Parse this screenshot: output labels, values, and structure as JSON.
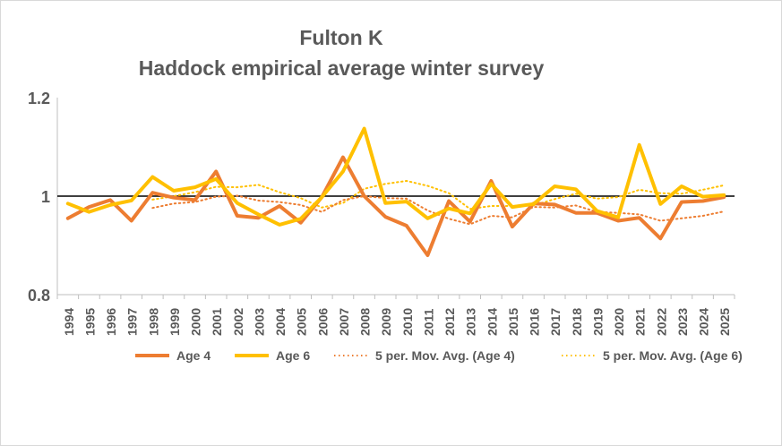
{
  "chart_data": {
    "type": "line",
    "title": "Fulton K",
    "subtitle": "Haddock empirical average winter survey",
    "x": [
      "1994",
      "1995",
      "1996",
      "1997",
      "1998",
      "1999",
      "2000",
      "2001",
      "2002",
      "2003",
      "2004",
      "2005",
      "2006",
      "2007",
      "2008",
      "2009",
      "2010",
      "2011",
      "2012",
      "2013",
      "2014",
      "2015",
      "2016",
      "2017",
      "2018",
      "2019",
      "2020",
      "2021",
      "2022",
      "2023",
      "2024",
      "2025"
    ],
    "ylim": [
      0.8,
      1.2
    ],
    "yticks": [
      "0.8",
      "1",
      "1.2"
    ],
    "reference_line": 1,
    "grid": false,
    "legend_position": "bottom",
    "series": [
      {
        "name": "Age 4",
        "style": "solid",
        "color": "#ED7D31",
        "values": [
          0.955,
          0.978,
          0.992,
          0.95,
          1.007,
          0.997,
          0.992,
          1.05,
          0.96,
          0.956,
          0.98,
          0.946,
          0.998,
          1.079,
          1.0,
          0.958,
          0.94,
          0.88,
          0.99,
          0.948,
          1.031,
          0.938,
          0.985,
          0.983,
          0.966,
          0.966,
          0.95,
          0.956,
          0.914,
          0.988,
          0.99,
          0.998
        ]
      },
      {
        "name": "Age 6",
        "style": "solid",
        "color": "#FFC000",
        "values": [
          0.985,
          0.968,
          0.982,
          0.991,
          1.039,
          1.011,
          1.018,
          1.035,
          0.986,
          0.963,
          0.942,
          0.954,
          0.998,
          1.05,
          1.137,
          0.986,
          0.989,
          0.955,
          0.975,
          0.965,
          1.025,
          0.978,
          0.984,
          1.02,
          1.014,
          0.97,
          0.957,
          1.104,
          0.984,
          1.02,
          0.999,
          1.002
        ]
      },
      {
        "name": "5 per. Mov. Avg. (Age 4)",
        "style": "dotted",
        "color": "#ED7D31",
        "values": [
          null,
          null,
          null,
          null,
          0.976,
          0.985,
          0.988,
          0.999,
          1.001,
          0.991,
          0.988,
          0.982,
          0.968,
          0.992,
          1.0,
          0.996,
          0.995,
          0.971,
          0.954,
          0.943,
          0.96,
          0.957,
          0.978,
          0.977,
          0.981,
          0.968,
          0.966,
          0.963,
          0.95,
          0.955,
          0.96,
          0.969
        ]
      },
      {
        "name": "5 per. Mov. Avg. (Age 6)",
        "style": "dotted",
        "color": "#FFC000",
        "values": [
          null,
          null,
          null,
          null,
          0.993,
          1.0,
          1.008,
          1.019,
          1.018,
          1.023,
          1.008,
          0.996,
          0.977,
          0.986,
          1.015,
          1.025,
          1.031,
          1.021,
          1.006,
          0.974,
          0.98,
          0.98,
          0.981,
          0.994,
          1.005,
          0.995,
          0.998,
          1.013,
          1.006,
          1.005,
          1.013,
          1.022
        ]
      }
    ]
  }
}
